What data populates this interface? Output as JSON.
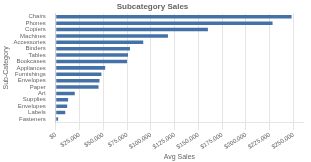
{
  "chart_data": {
    "type": "bar",
    "orientation": "horizontal",
    "title": "Subcategory Sales",
    "xlabel": "Avg Sales",
    "ylabel": "Sub-Category",
    "categories": [
      "Chairs",
      "Phones",
      "Copiers",
      "Machines",
      "Accessories",
      "Binders",
      "Tables",
      "Bookcases",
      "Appliances",
      "Furnishings",
      "Envelopes",
      "Paper",
      "Art",
      "Supplies",
      "Envelopes",
      "Labels",
      "Fasteners"
    ],
    "values": [
      248000,
      228000,
      160000,
      118000,
      92000,
      78000,
      76000,
      75000,
      52000,
      48000,
      46000,
      45000,
      20000,
      13000,
      12000,
      10000,
      2500
    ],
    "color": "#4472a8",
    "xlim": [
      0,
      260000
    ],
    "xticks": [
      {
        "value": 0,
        "label": "$0"
      },
      {
        "value": 25000,
        "label": "$25,000"
      },
      {
        "value": 50000,
        "label": "$50,000"
      },
      {
        "value": 75000,
        "label": "$75,000"
      },
      {
        "value": 100000,
        "label": "$100,000"
      },
      {
        "value": 125000,
        "label": "$125,000"
      },
      {
        "value": 150000,
        "label": "$150,000"
      },
      {
        "value": 175000,
        "label": "$175,000"
      },
      {
        "value": 200000,
        "label": "$200,000"
      },
      {
        "value": 225000,
        "label": "$225,000"
      },
      {
        "value": 250000,
        "label": "$250,000"
      }
    ],
    "grid": true
  }
}
